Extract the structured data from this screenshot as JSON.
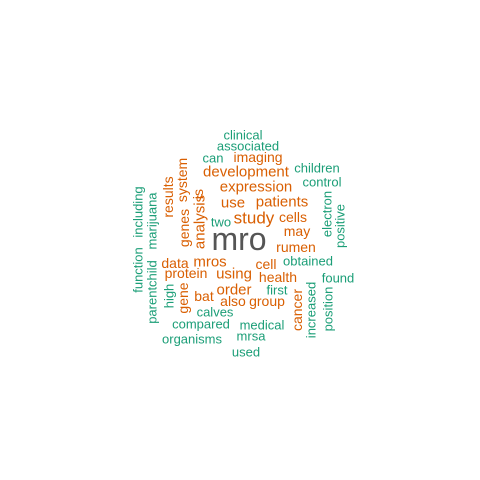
{
  "colors": {
    "green": "#1b9e77",
    "orange": "#d95f02",
    "gray": "#555555"
  },
  "words": {
    "clinical": "clinical",
    "associated": "associated",
    "can": "can",
    "imaging": "imaging",
    "children": "children",
    "development": "development",
    "control": "control",
    "expression": "expression",
    "use": "use",
    "patients": "patients",
    "electron": "electron",
    "positive": "positive",
    "two": "two",
    "study": "study",
    "cells": "cells",
    "may": "may",
    "mro": "mro",
    "rumen": "rumen",
    "data": "data",
    "mros": "mros",
    "cell": "cell",
    "obtained": "obtained",
    "protein": "protein",
    "using": "using",
    "health": "health",
    "found": "found",
    "order": "order",
    "first": "first",
    "bat": "bat",
    "also": "also",
    "group": "group",
    "calves": "calves",
    "compared": "compared",
    "medical": "medical",
    "organisms": "organisms",
    "mrsa": "mrsa",
    "used": "used",
    "system": "system",
    "results": "results",
    "is": "is",
    "genes": "genes",
    "analysis": "analysis",
    "including": "including",
    "marijuana": "marijuana",
    "function": "function",
    "parentchild": "parentchild",
    "high": "high",
    "gene": "gene",
    "cancer": "cancer",
    "increased": "increased",
    "position": "position"
  }
}
